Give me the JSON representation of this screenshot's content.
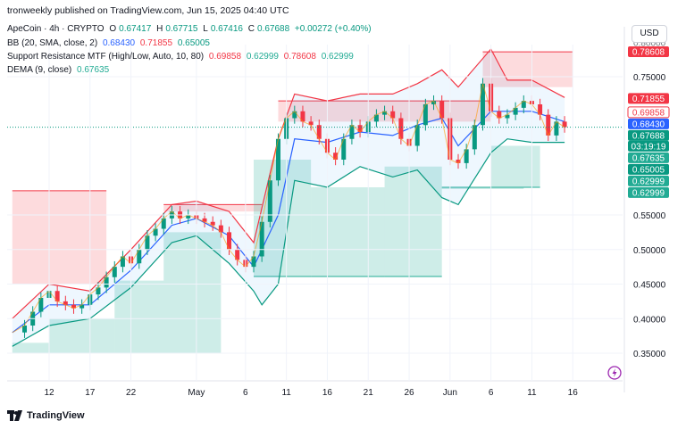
{
  "header": {
    "credit": "tronweekly published on TradingView.com, Jun 15, 2025 04:40 UTC",
    "symbol": "ApeCoin · 4h · CRYPTO",
    "ohlc": {
      "o_label": "O",
      "o": "0.67417",
      "h_label": "H",
      "h": "0.67715",
      "l_label": "L",
      "l": "0.67416",
      "c_label": "C",
      "c": "0.67688",
      "change": "+0.00272 (+0.40%)"
    },
    "bb": {
      "label": "BB (20, SMA, close, 2)",
      "basis": "0.68430",
      "upper": "0.71855",
      "lower": "0.65005"
    },
    "sr": {
      "label": "Support Resistance MTF (High/Low, Auto, 10, 80)",
      "v1": "0.69858",
      "v2": "0.62999",
      "v3": "0.78608",
      "v4": "0.62999"
    },
    "dema": {
      "label": "DEMA (9, close)",
      "value": "0.67635"
    }
  },
  "currency_button": "USD",
  "brand": "TradingView",
  "colors": {
    "up": "#089981",
    "down": "#f23645",
    "bb_basis": "#2962ff",
    "bb_upper": "#f23645",
    "bb_lower": "#089981",
    "bb_fill": "#2196f3",
    "resistance_fill": "#f23645",
    "support_fill": "#22ab94",
    "dema": "#ff9800"
  },
  "chart_data": {
    "type": "line",
    "symbol": "ApeCoin",
    "interval": "4h",
    "y_axis": {
      "ticks": [
        0.35,
        0.4,
        0.45,
        0.5,
        0.55,
        0.75
      ],
      "tick_labels": [
        "0.35000",
        "0.40000",
        "0.45000",
        "0.50000",
        "0.55000",
        "0.75000"
      ],
      "range": [
        0.318,
        0.81
      ],
      "top_label": "0.80000"
    },
    "x_axis": {
      "ticks": [
        {
          "label": "12",
          "day": 12
        },
        {
          "label": "17",
          "day": 17
        },
        {
          "label": "22",
          "day": 22
        },
        {
          "label": "May",
          "day": 30
        },
        {
          "label": "6",
          "day": 36
        },
        {
          "label": "11",
          "day": 41
        },
        {
          "label": "16",
          "day": 46
        },
        {
          "label": "21",
          "day": 51
        },
        {
          "label": "26",
          "day": 56
        },
        {
          "label": "Jun",
          "day": 61
        },
        {
          "label": "6",
          "day": 66
        },
        {
          "label": "11",
          "day": 71
        },
        {
          "label": "16",
          "day": 76
        }
      ],
      "range": [
        7,
        77
      ]
    },
    "price_series": {
      "name": "ApeCoin 4h close (approx.)",
      "day": [
        7.5,
        9,
        10,
        11,
        12,
        13,
        14,
        15,
        16,
        17,
        18,
        19,
        20,
        21,
        22,
        23,
        24,
        25,
        26,
        27,
        28,
        29,
        30,
        31,
        32,
        33,
        34,
        35,
        36,
        37,
        38,
        39,
        40,
        41,
        42,
        43,
        44,
        45,
        46,
        47,
        48,
        49,
        50,
        51,
        52,
        53,
        54,
        55,
        56,
        57,
        58,
        59,
        60,
        61,
        62,
        63,
        64,
        65,
        66,
        67,
        68,
        69,
        70,
        71,
        72,
        73,
        74,
        75
      ],
      "close": [
        0.38,
        0.39,
        0.41,
        0.43,
        0.44,
        0.425,
        0.42,
        0.415,
        0.42,
        0.435,
        0.445,
        0.46,
        0.475,
        0.49,
        0.48,
        0.5,
        0.52,
        0.53,
        0.545,
        0.555,
        0.545,
        0.55,
        0.545,
        0.54,
        0.535,
        0.525,
        0.5,
        0.485,
        0.475,
        0.49,
        0.54,
        0.6,
        0.66,
        0.69,
        0.7,
        0.685,
        0.68,
        0.66,
        0.64,
        0.63,
        0.66,
        0.68,
        0.67,
        0.685,
        0.695,
        0.7,
        0.69,
        0.66,
        0.65,
        0.68,
        0.71,
        0.715,
        0.69,
        0.63,
        0.625,
        0.645,
        0.68,
        0.74,
        0.7,
        0.69,
        0.695,
        0.705,
        0.715,
        0.71,
        0.695,
        0.665,
        0.685,
        0.677
      ]
    },
    "bb_upper": {
      "name": "BB upper",
      "day": [
        7.5,
        12,
        17,
        22,
        27,
        30,
        34,
        37,
        40,
        42,
        46,
        50,
        54,
        57,
        60,
        62,
        66,
        68,
        71,
        75
      ],
      "value": [
        0.4,
        0.45,
        0.44,
        0.5,
        0.565,
        0.57,
        0.555,
        0.51,
        0.66,
        0.725,
        0.715,
        0.725,
        0.725,
        0.74,
        0.76,
        0.735,
        0.79,
        0.745,
        0.745,
        0.72
      ]
    },
    "bb_lower": {
      "name": "BB lower",
      "day": [
        7.5,
        12,
        17,
        22,
        27,
        30,
        34,
        37,
        38,
        40,
        42,
        46,
        50,
        54,
        57,
        60,
        62,
        66,
        68,
        71,
        75
      ],
      "value": [
        0.36,
        0.39,
        0.4,
        0.445,
        0.51,
        0.52,
        0.48,
        0.44,
        0.42,
        0.45,
        0.6,
        0.59,
        0.62,
        0.605,
        0.615,
        0.575,
        0.565,
        0.64,
        0.66,
        0.655,
        0.655
      ]
    },
    "bb_basis": {
      "name": "BB basis",
      "day": [
        7.5,
        12,
        17,
        22,
        27,
        30,
        34,
        37,
        40,
        42,
        46,
        50,
        54,
        57,
        60,
        62,
        66,
        68,
        71,
        75
      ],
      "value": [
        0.38,
        0.42,
        0.42,
        0.47,
        0.535,
        0.545,
        0.52,
        0.475,
        0.55,
        0.66,
        0.655,
        0.67,
        0.665,
        0.68,
        0.69,
        0.65,
        0.7,
        0.7,
        0.7,
        0.685
      ]
    },
    "resistance_zones": [
      {
        "from": 7.5,
        "to": 19,
        "top": 0.585,
        "bottom": 0.45
      },
      {
        "from": 26,
        "to": 38,
        "top": 0.565,
        "bottom": 0.555
      },
      {
        "from": 40,
        "to": 66,
        "top": 0.715,
        "bottom": 0.685
      },
      {
        "from": 65,
        "to": 76,
        "top": 0.786,
        "bottom": 0.735
      }
    ],
    "support_zones": [
      {
        "from": 7.5,
        "to": 12,
        "top": 0.365,
        "bottom": 0.35
      },
      {
        "from": 12,
        "to": 20,
        "top": 0.4,
        "bottom": 0.35
      },
      {
        "from": 20,
        "to": 26,
        "top": 0.455,
        "bottom": 0.35
      },
      {
        "from": 26,
        "to": 33,
        "top": 0.525,
        "bottom": 0.35
      },
      {
        "from": 37,
        "to": 44,
        "top": 0.63,
        "bottom": 0.461
      },
      {
        "from": 44,
        "to": 53,
        "top": 0.59,
        "bottom": 0.461
      },
      {
        "from": 53,
        "to": 60,
        "top": 0.62,
        "bottom": 0.461
      },
      {
        "from": 60,
        "to": 70,
        "top": 0.59,
        "bottom": 0.59
      },
      {
        "from": 66,
        "to": 72,
        "top": 0.65,
        "bottom": 0.59
      }
    ],
    "last_price": 0.67688,
    "countdown": "03:19:19",
    "price_labels": [
      {
        "value": "0.78608",
        "y": 0.78608,
        "color": "#f23645",
        "kind": "filled"
      },
      {
        "value": "0.71855",
        "y": 0.71855,
        "color": "#f23645",
        "kind": "filled"
      },
      {
        "value": "0.69858",
        "y": 0.69858,
        "color": "#f23645",
        "kind": "outline"
      },
      {
        "value": "0.68430",
        "y": 0.6843,
        "color": "#2962ff",
        "kind": "filled"
      },
      {
        "value": "0.67688",
        "y": 0.67688,
        "color": "#089981",
        "kind": "filled"
      },
      {
        "value": "0.67635",
        "y": 0.66,
        "color": "#22ab94",
        "kind": "filled"
      },
      {
        "value": "0.65005",
        "y": 0.645,
        "color": "#089981",
        "kind": "filled"
      },
      {
        "value": "0.62999",
        "y": 0.625,
        "color": "#22ab94",
        "kind": "filled"
      },
      {
        "value": "0.62999",
        "y": 0.605,
        "color": "#22ab94",
        "kind": "filled"
      }
    ]
  }
}
